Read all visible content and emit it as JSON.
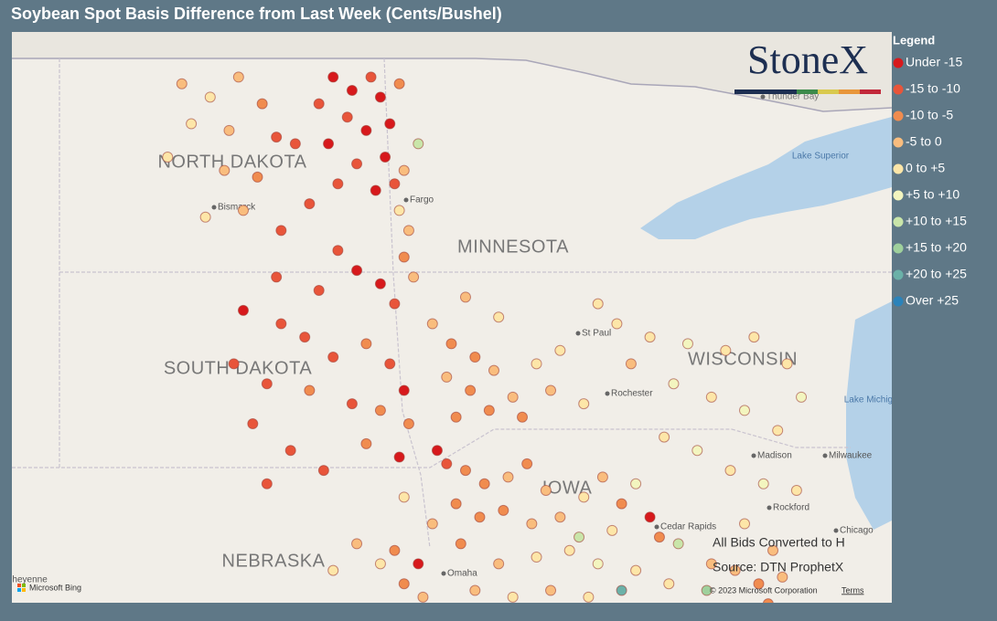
{
  "header": {
    "title": "Soybean Spot Basis Difference from Last Week (Cents/Bushel)"
  },
  "logo": {
    "text": "StoneX"
  },
  "legend": {
    "title": "Legend",
    "items": [
      {
        "label": "Under -15",
        "color": "#d7191c"
      },
      {
        "label": "-15 to -10",
        "color": "#e8553a"
      },
      {
        "label": "-10 to -5",
        "color": "#f08c4f"
      },
      {
        "label": "-5 to 0",
        "color": "#f9bd7e"
      },
      {
        "label": "0 to +5",
        "color": "#fde6a8"
      },
      {
        "label": "+5 to +10",
        "color": "#f3f5bf"
      },
      {
        "label": "+10 to +15",
        "color": "#c9e5a9"
      },
      {
        "label": "+15 to +20",
        "color": "#9fd09c"
      },
      {
        "label": "+20 to +25",
        "color": "#6bb1a8"
      },
      {
        "label": "Over +25",
        "color": "#2b83ba"
      }
    ]
  },
  "map": {
    "place_labels": [
      "NORTH DAKOTA",
      "SOUTH DAKOTA",
      "MINNESOTA",
      "WISCONSIN",
      "NEBRASKA",
      "IOWA",
      "Bismarck",
      "Fargo",
      "St Paul",
      "Rochester",
      "Madison",
      "Milwaukee",
      "Rockford",
      "Chicago",
      "Omaha",
      "Cedar Rapids",
      "Thunder Bay",
      "Lake Superior",
      "Lake Michigan",
      "Cheyenne"
    ],
    "points": [
      [
        -98.3,
        48.9,
        0
      ],
      [
        -97.9,
        48.7,
        0
      ],
      [
        -97.5,
        48.9,
        1
      ],
      [
        -97.3,
        48.6,
        0
      ],
      [
        -98.0,
        48.3,
        1
      ],
      [
        -97.6,
        48.1,
        0
      ],
      [
        -97.1,
        48.2,
        0
      ],
      [
        -98.4,
        47.9,
        0
      ],
      [
        -97.8,
        47.6,
        1
      ],
      [
        -97.2,
        47.7,
        0
      ],
      [
        -98.2,
        47.3,
        1
      ],
      [
        -97.4,
        47.2,
        0
      ],
      [
        -97.0,
        47.3,
        1
      ],
      [
        -98.6,
        48.5,
        1
      ],
      [
        -96.9,
        48.8,
        2
      ],
      [
        -101.5,
        48.8,
        3
      ],
      [
        -100.9,
        48.6,
        4
      ],
      [
        -100.3,
        48.9,
        3
      ],
      [
        -99.8,
        48.5,
        2
      ],
      [
        -101.3,
        48.2,
        4
      ],
      [
        -100.5,
        48.1,
        3
      ],
      [
        -99.5,
        48.0,
        1
      ],
      [
        -101.8,
        47.7,
        4
      ],
      [
        -100.6,
        47.5,
        3
      ],
      [
        -99.9,
        47.4,
        2
      ],
      [
        -100.2,
        46.9,
        3
      ],
      [
        -99.4,
        46.6,
        1
      ],
      [
        -101.0,
        46.8,
        4
      ],
      [
        -99.1,
        47.9,
        1
      ],
      [
        -98.8,
        47.0,
        1
      ],
      [
        -96.8,
        47.5,
        3
      ],
      [
        -96.9,
        46.9,
        4
      ],
      [
        -96.7,
        46.6,
        3
      ],
      [
        -96.5,
        47.9,
        6
      ],
      [
        -96.8,
        46.2,
        2
      ],
      [
        -96.6,
        45.9,
        3
      ],
      [
        -98.2,
        46.3,
        1
      ],
      [
        -97.8,
        46.0,
        0
      ],
      [
        -97.3,
        45.8,
        0
      ],
      [
        -97.0,
        45.5,
        1
      ],
      [
        -98.6,
        45.7,
        1
      ],
      [
        -99.5,
        45.9,
        1
      ],
      [
        -100.2,
        45.4,
        0
      ],
      [
        -99.4,
        45.2,
        1
      ],
      [
        -98.9,
        45.0,
        1
      ],
      [
        -98.3,
        44.7,
        1
      ],
      [
        -97.6,
        44.9,
        2
      ],
      [
        -97.1,
        44.6,
        1
      ],
      [
        -100.4,
        44.6,
        1
      ],
      [
        -99.7,
        44.3,
        1
      ],
      [
        -98.8,
        44.2,
        2
      ],
      [
        -97.9,
        44.0,
        1
      ],
      [
        -97.3,
        43.9,
        2
      ],
      [
        -100.0,
        43.7,
        1
      ],
      [
        -99.2,
        43.3,
        1
      ],
      [
        -98.5,
        43.0,
        1
      ],
      [
        -97.6,
        43.4,
        2
      ],
      [
        -96.9,
        43.2,
        0
      ],
      [
        -96.8,
        44.2,
        0
      ],
      [
        -96.7,
        43.7,
        2
      ],
      [
        -99.7,
        42.8,
        1
      ],
      [
        -96.2,
        45.2,
        3
      ],
      [
        -95.8,
        44.9,
        2
      ],
      [
        -95.3,
        44.7,
        2
      ],
      [
        -95.9,
        44.4,
        3
      ],
      [
        -95.4,
        44.2,
        2
      ],
      [
        -94.9,
        44.5,
        3
      ],
      [
        -94.5,
        44.1,
        3
      ],
      [
        -95.0,
        43.9,
        2
      ],
      [
        -94.3,
        43.8,
        2
      ],
      [
        -95.7,
        43.8,
        2
      ],
      [
        -94.0,
        44.6,
        4
      ],
      [
        -94.8,
        45.3,
        4
      ],
      [
        -95.5,
        45.6,
        3
      ],
      [
        -93.5,
        44.8,
        4
      ],
      [
        -93.7,
        44.2,
        3
      ],
      [
        -93.0,
        44.0,
        4
      ],
      [
        -96.1,
        43.3,
        0
      ],
      [
        -95.9,
        43.1,
        1
      ],
      [
        -95.5,
        43.0,
        2
      ],
      [
        -95.1,
        42.8,
        2
      ],
      [
        -94.6,
        42.9,
        3
      ],
      [
        -94.2,
        43.1,
        2
      ],
      [
        -93.8,
        42.7,
        3
      ],
      [
        -95.7,
        42.5,
        2
      ],
      [
        -95.2,
        42.3,
        2
      ],
      [
        -94.7,
        42.4,
        2
      ],
      [
        -94.1,
        42.2,
        3
      ],
      [
        -93.5,
        42.3,
        3
      ],
      [
        -93.0,
        42.6,
        4
      ],
      [
        -92.6,
        42.9,
        3
      ],
      [
        -92.2,
        42.5,
        2
      ],
      [
        -92.4,
        42.1,
        4
      ],
      [
        -91.9,
        42.8,
        5
      ],
      [
        -91.6,
        42.3,
        0
      ],
      [
        -91.4,
        42.0,
        2
      ],
      [
        -93.3,
        41.8,
        4
      ],
      [
        -94.0,
        41.7,
        4
      ],
      [
        -94.8,
        41.6,
        3
      ],
      [
        -95.6,
        41.9,
        2
      ],
      [
        -92.7,
        41.6,
        5
      ],
      [
        -91.9,
        41.5,
        4
      ],
      [
        -91.2,
        41.3,
        4
      ],
      [
        -93.7,
        41.2,
        3
      ],
      [
        -92.2,
        41.2,
        8
      ],
      [
        -91.0,
        41.9,
        6
      ],
      [
        -92.9,
        41.1,
        4
      ],
      [
        -95.3,
        41.2,
        3
      ],
      [
        -94.5,
        41.1,
        4
      ],
      [
        -93.1,
        42.0,
        6
      ],
      [
        -97.8,
        41.9,
        3
      ],
      [
        -97.3,
        41.6,
        4
      ],
      [
        -96.8,
        41.3,
        2
      ],
      [
        -96.4,
        41.1,
        3
      ],
      [
        -97.0,
        41.8,
        2
      ],
      [
        -96.5,
        41.6,
        0
      ],
      [
        -98.3,
        41.5,
        4
      ],
      [
        -96.2,
        42.2,
        3
      ],
      [
        -96.8,
        42.6,
        4
      ],
      [
        -92.3,
        45.2,
        4
      ],
      [
        -91.6,
        45.0,
        4
      ],
      [
        -90.8,
        44.9,
        5
      ],
      [
        -90.0,
        44.8,
        4
      ],
      [
        -89.4,
        45.0,
        4
      ],
      [
        -88.7,
        44.6,
        4
      ],
      [
        -91.1,
        44.3,
        5
      ],
      [
        -90.3,
        44.1,
        4
      ],
      [
        -89.6,
        43.9,
        5
      ],
      [
        -88.9,
        43.6,
        4
      ],
      [
        -88.4,
        44.1,
        5
      ],
      [
        -91.3,
        43.5,
        4
      ],
      [
        -90.6,
        43.3,
        5
      ],
      [
        -89.9,
        43.0,
        4
      ],
      [
        -89.2,
        42.8,
        5
      ],
      [
        -88.5,
        42.7,
        4
      ],
      [
        -92.0,
        44.6,
        3
      ],
      [
        -92.7,
        45.5,
        4
      ],
      [
        -89.8,
        41.5,
        3
      ],
      [
        -89.3,
        41.3,
        2
      ],
      [
        -88.8,
        41.4,
        3
      ],
      [
        -89.0,
        41.8,
        3
      ],
      [
        -90.3,
        41.6,
        3
      ],
      [
        -89.6,
        42.2,
        4
      ],
      [
        -90.4,
        41.2,
        7
      ],
      [
        -89.1,
        41.0,
        2
      ]
    ]
  },
  "notes": [
    "All Bids Converted to H",
    "Source: DTN ProphetX"
  ],
  "attribution": {
    "copyright": "© 2023 Microsoft Corporation",
    "terms": "Terms",
    "provider": "Microsoft Bing"
  }
}
